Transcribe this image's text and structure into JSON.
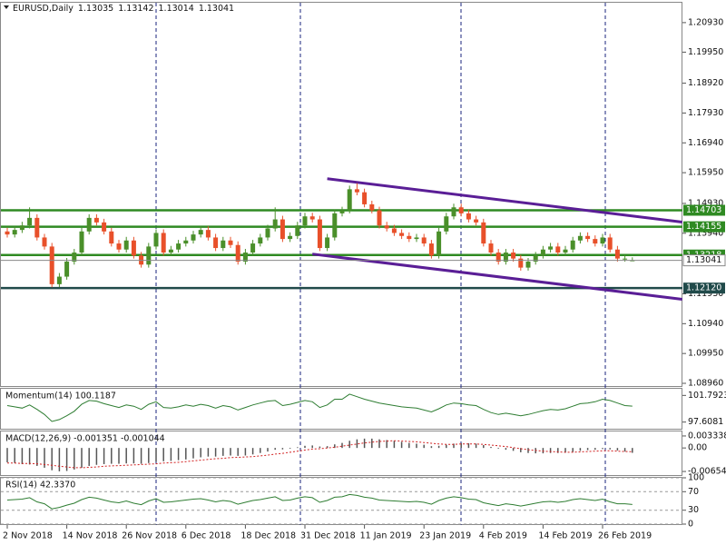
{
  "chart_data": [
    {
      "type": "candlestick",
      "symbol": "EURUSD,Daily",
      "ylim": [
        1.0887,
        1.2159
      ],
      "yticks": [
        {
          "value": 1.2093,
          "label": "1.20930"
        },
        {
          "value": 1.1995,
          "label": "1.19950"
        },
        {
          "value": 1.1892,
          "label": "1.18920"
        },
        {
          "value": 1.1793,
          "label": "1.17930"
        },
        {
          "value": 1.1694,
          "label": "1.16940"
        },
        {
          "value": 1.1595,
          "label": "1.15950"
        },
        {
          "value": 1.1493,
          "label": "1.14930"
        },
        {
          "value": 1.1394,
          "label": "1.13940"
        },
        {
          "value": 1.1193,
          "label": "1.11930"
        },
        {
          "value": 1.1094,
          "label": "1.10940"
        },
        {
          "value": 1.0995,
          "label": "1.09950"
        },
        {
          "value": 1.0896,
          "label": "1.08960"
        }
      ],
      "categories": [
        "2 Nov 2018",
        null,
        null,
        null,
        null,
        null,
        null,
        null,
        "14 Nov 2018",
        null,
        null,
        null,
        null,
        null,
        null,
        null,
        "26 Nov 2018",
        null,
        null,
        null,
        null,
        null,
        null,
        null,
        "6 Dec 2018",
        null,
        null,
        null,
        null,
        null,
        null,
        null,
        "18 Dec 2018",
        null,
        null,
        null,
        null,
        null,
        null,
        null,
        "31 Dec 2018",
        null,
        null,
        null,
        null,
        null,
        null,
        null,
        "11 Jan 2019",
        null,
        null,
        null,
        null,
        null,
        null,
        null,
        "23 Jan 2019",
        null,
        null,
        null,
        null,
        null,
        null,
        null,
        "4 Feb 2019",
        null,
        null,
        null,
        null,
        null,
        null,
        null,
        "14 Feb 2019",
        null,
        null,
        null,
        null,
        null,
        null,
        null,
        "26 Feb 2019",
        null,
        null,
        null,
        null
      ],
      "ohlc": [
        [
          1.14,
          1.1412,
          1.138,
          1.139
        ],
        [
          1.139,
          1.1417,
          1.138,
          1.1405
        ],
        [
          1.1405,
          1.1432,
          1.1395,
          1.142
        ],
        [
          1.142,
          1.148,
          1.141,
          1.1445
        ],
        [
          1.1445,
          1.1457,
          1.137,
          1.138
        ],
        [
          1.138,
          1.1392,
          1.134,
          1.135
        ],
        [
          1.135,
          1.1362,
          1.1215,
          1.1225
        ],
        [
          1.1225,
          1.1262,
          1.1215,
          1.125
        ],
        [
          1.125,
          1.1312,
          1.124,
          1.13
        ],
        [
          1.13,
          1.1342,
          1.129,
          1.133
        ],
        [
          1.133,
          1.1412,
          1.132,
          1.14
        ],
        [
          1.14,
          1.1457,
          1.139,
          1.1445
        ],
        [
          1.1445,
          1.1457,
          1.142,
          1.143
        ],
        [
          1.143,
          1.1442,
          1.139,
          1.14
        ],
        [
          1.14,
          1.1412,
          1.135,
          1.136
        ],
        [
          1.136,
          1.1372,
          1.133,
          1.134
        ],
        [
          1.134,
          1.1382,
          1.133,
          1.137
        ],
        [
          1.137,
          1.1382,
          1.131,
          1.132
        ],
        [
          1.132,
          1.1332,
          1.128,
          1.129
        ],
        [
          1.129,
          1.1362,
          1.128,
          1.135
        ],
        [
          1.135,
          1.1407,
          1.134,
          1.1395
        ],
        [
          1.1395,
          1.1407,
          1.132,
          1.133
        ],
        [
          1.133,
          1.1352,
          1.132,
          1.134
        ],
        [
          1.134,
          1.1372,
          1.133,
          1.136
        ],
        [
          1.136,
          1.1382,
          1.135,
          1.137
        ],
        [
          1.137,
          1.1402,
          1.136,
          1.139
        ],
        [
          1.139,
          1.1417,
          1.138,
          1.1405
        ],
        [
          1.1405,
          1.1417,
          1.137,
          1.138
        ],
        [
          1.138,
          1.1392,
          1.1335,
          1.1345
        ],
        [
          1.1345,
          1.1382,
          1.1335,
          1.137
        ],
        [
          1.137,
          1.1382,
          1.1345,
          1.1355
        ],
        [
          1.1355,
          1.1367,
          1.129,
          1.13
        ],
        [
          1.13,
          1.1342,
          1.129,
          1.133
        ],
        [
          1.133,
          1.1372,
          1.132,
          1.136
        ],
        [
          1.136,
          1.1392,
          1.135,
          1.138
        ],
        [
          1.138,
          1.1422,
          1.137,
          1.141
        ],
        [
          1.141,
          1.148,
          1.14,
          1.144
        ],
        [
          1.144,
          1.1452,
          1.1365,
          1.1375
        ],
        [
          1.1375,
          1.1397,
          1.1365,
          1.1385
        ],
        [
          1.1385,
          1.1432,
          1.1375,
          1.142
        ],
        [
          1.142,
          1.1462,
          1.141,
          1.145
        ],
        [
          1.145,
          1.1462,
          1.143,
          1.144
        ],
        [
          1.144,
          1.1452,
          1.1335,
          1.1345
        ],
        [
          1.1345,
          1.1392,
          1.1335,
          1.138
        ],
        [
          1.138,
          1.1472,
          1.137,
          1.146
        ],
        [
          1.146,
          1.1482,
          1.145,
          1.147
        ],
        [
          1.147,
          1.1552,
          1.146,
          1.154
        ],
        [
          1.154,
          1.156,
          1.152,
          1.153
        ],
        [
          1.153,
          1.1542,
          1.148,
          1.149
        ],
        [
          1.149,
          1.1502,
          1.146,
          1.147
        ],
        [
          1.147,
          1.1482,
          1.141,
          1.142
        ],
        [
          1.142,
          1.1432,
          1.14,
          1.141
        ],
        [
          1.141,
          1.1422,
          1.1385,
          1.1395
        ],
        [
          1.1395,
          1.1407,
          1.1375,
          1.1385
        ],
        [
          1.1385,
          1.1397,
          1.1365,
          1.1375
        ],
        [
          1.1375,
          1.1392,
          1.1365,
          1.138
        ],
        [
          1.138,
          1.1392,
          1.135,
          1.136
        ],
        [
          1.136,
          1.1372,
          1.131,
          1.132
        ],
        [
          1.132,
          1.1412,
          1.131,
          1.14
        ],
        [
          1.14,
          1.1462,
          1.139,
          1.145
        ],
        [
          1.145,
          1.1492,
          1.144,
          1.148
        ],
        [
          1.148,
          1.1492,
          1.145,
          1.146
        ],
        [
          1.146,
          1.1472,
          1.143,
          1.144
        ],
        [
          1.144,
          1.1452,
          1.142,
          1.143
        ],
        [
          1.143,
          1.1442,
          1.135,
          1.136
        ],
        [
          1.136,
          1.1372,
          1.132,
          1.133
        ],
        [
          1.133,
          1.1342,
          1.129,
          1.13
        ],
        [
          1.13,
          1.1342,
          1.129,
          1.133
        ],
        [
          1.133,
          1.1342,
          1.13,
          1.131
        ],
        [
          1.131,
          1.1322,
          1.127,
          1.128
        ],
        [
          1.128,
          1.1312,
          1.127,
          1.13
        ],
        [
          1.13,
          1.1332,
          1.129,
          1.132
        ],
        [
          1.132,
          1.1352,
          1.131,
          1.134
        ],
        [
          1.134,
          1.1362,
          1.133,
          1.135
        ],
        [
          1.135,
          1.1362,
          1.132,
          1.133
        ],
        [
          1.133,
          1.1352,
          1.132,
          1.134
        ],
        [
          1.134,
          1.1382,
          1.133,
          1.137
        ],
        [
          1.137,
          1.1397,
          1.136,
          1.1385
        ],
        [
          1.1385,
          1.1397,
          1.1365,
          1.1375
        ],
        [
          1.1375,
          1.1387,
          1.135,
          1.136
        ],
        [
          1.136,
          1.1392,
          1.135,
          1.138
        ],
        [
          1.138,
          1.1392,
          1.133,
          1.134
        ],
        [
          1.134,
          1.1352,
          1.13,
          1.131
        ],
        [
          1.131,
          1.1322,
          1.13,
          1.131
        ],
        [
          1.13035,
          1.13142,
          1.13014,
          1.13041
        ]
      ],
      "up_color": "#4a8f2a",
      "down_color": "#e8502a",
      "levels": [
        1.14703,
        1.14155,
        1.13218,
        {
          "value": 1.1212,
          "label": "1.12120"
        }
      ],
      "level_colors": [
        "#2f8a22",
        "#2f8a22",
        "#2f8a22",
        "#204a4a"
      ],
      "trendlines": [
        {
          "x": [
            43,
            90.7
          ],
          "y": [
            1.1575,
            1.1431
          ]
        },
        {
          "x": [
            41,
            90.7
          ],
          "y": [
            1.1325,
            1.1175
          ]
        }
      ],
      "trendline_color": "#5a1e96"
    },
    {
      "type": "line",
      "title": "Momentum(14) 100.1187",
      "ylim": [
        96.562,
        102.838
      ],
      "yticks": [
        101.7923,
        97.6081
      ],
      "color": "#2e7d32",
      "values": [
        100.2,
        100.0,
        99.8,
        100.3,
        99.6,
        98.8,
        97.7,
        98.0,
        98.6,
        99.3,
        100.4,
        101.0,
        100.9,
        100.5,
        100.2,
        99.9,
        100.3,
        100.1,
        99.6,
        100.4,
        100.8,
        99.9,
        99.8,
        100.0,
        100.3,
        100.1,
        100.4,
        100.2,
        99.8,
        100.2,
        100.0,
        99.5,
        99.9,
        100.3,
        100.6,
        100.9,
        101.0,
        100.2,
        100.4,
        100.7,
        101.0,
        100.8,
        99.9,
        100.3,
        101.2,
        101.2,
        102.0,
        101.6,
        101.2,
        100.9,
        100.6,
        100.4,
        100.2,
        100.0,
        99.9,
        99.8,
        99.5,
        99.2,
        99.7,
        100.3,
        100.6,
        100.5,
        100.3,
        100.2,
        99.6,
        99.1,
        98.8,
        99.0,
        98.8,
        98.6,
        98.8,
        99.1,
        99.4,
        99.6,
        99.5,
        99.7,
        100.1,
        100.5,
        100.6,
        100.8,
        101.2,
        101.0,
        100.6,
        100.2,
        100.1187
      ]
    },
    {
      "type": "macd",
      "title": "MACD(12,26,9) -0.001351 -0.001044",
      "ylim": [
        -0.00754,
        0.00459
      ],
      "yticks": [
        0.003338,
        {
          "value": 0,
          "label": "0.00"
        },
        -0.006542
      ],
      "color": "#555555",
      "signal_color": "#d22222",
      "histogram": [
        -0.004,
        -0.0042,
        -0.0045,
        -0.0046,
        -0.005,
        -0.0055,
        -0.0062,
        -0.0065,
        -0.0064,
        -0.006,
        -0.0055,
        -0.005,
        -0.0047,
        -0.0045,
        -0.0044,
        -0.0044,
        -0.0043,
        -0.0043,
        -0.0044,
        -0.0042,
        -0.0038,
        -0.0037,
        -0.0036,
        -0.0034,
        -0.0032,
        -0.0029,
        -0.0026,
        -0.0024,
        -0.0024,
        -0.0022,
        -0.0021,
        -0.0022,
        -0.0021,
        -0.0018,
        -0.0014,
        -0.001,
        -0.0005,
        -0.0004,
        -0.0002,
        0.0002,
        0.0006,
        0.0007,
        0.0004,
        0.0005,
        0.001,
        0.0014,
        0.002,
        0.0024,
        0.0026,
        0.0026,
        0.0024,
        0.0022,
        0.002,
        0.0017,
        0.0014,
        0.0012,
        0.0009,
        0.0005,
        0.0006,
        0.0009,
        0.0012,
        0.0013,
        0.0013,
        0.0012,
        0.0008,
        0.0003,
        -0.0002,
        -0.0005,
        -0.0008,
        -0.0012,
        -0.0014,
        -0.0015,
        -0.0015,
        -0.0014,
        -0.0014,
        -0.0013,
        -0.0011,
        -0.0008,
        -0.0006,
        -0.0005,
        -0.0003,
        -0.0004,
        -0.0007,
        -0.001,
        -0.001351
      ],
      "signal": [
        -0.0042,
        -0.0042,
        -0.0043,
        -0.0043,
        -0.0044,
        -0.0046,
        -0.0048,
        -0.0051,
        -0.0053,
        -0.0055,
        -0.0055,
        -0.0054,
        -0.0053,
        -0.0051,
        -0.005,
        -0.0049,
        -0.0048,
        -0.0047,
        -0.0046,
        -0.0045,
        -0.0044,
        -0.0042,
        -0.0041,
        -0.004,
        -0.0038,
        -0.0036,
        -0.0034,
        -0.0032,
        -0.003,
        -0.0029,
        -0.0027,
        -0.0026,
        -0.0025,
        -0.0024,
        -0.0022,
        -0.002,
        -0.0017,
        -0.0015,
        -0.0012,
        -0.0009,
        -0.0006,
        -0.0003,
        -0.0002,
        0.0,
        0.0002,
        0.0005,
        0.0008,
        0.0011,
        0.0014,
        0.0016,
        0.0018,
        0.0019,
        0.002,
        0.0019,
        0.0018,
        0.0017,
        0.0015,
        0.0013,
        0.0011,
        0.001,
        0.001,
        0.0011,
        0.0011,
        0.0011,
        0.001,
        0.0008,
        0.0006,
        0.0004,
        0.0001,
        -0.0002,
        -0.0005,
        -0.0007,
        -0.0009,
        -0.001,
        -0.0011,
        -0.0012,
        -0.0012,
        -0.0011,
        -0.001,
        -0.0009,
        -0.0008,
        -0.0008,
        -0.0009,
        -0.001,
        -0.001044
      ]
    },
    {
      "type": "line",
      "title": "RSI(14) 42.3370",
      "ylim": [
        0,
        100
      ],
      "yticks": [
        100,
        70,
        30,
        0
      ],
      "color": "#2e7d32",
      "grid": "dashed",
      "values": [
        52,
        53,
        54,
        57,
        48,
        44,
        33,
        36,
        41,
        45,
        53,
        58,
        56,
        52,
        48,
        46,
        50,
        45,
        42,
        50,
        55,
        47,
        48,
        50,
        52,
        54,
        55,
        52,
        48,
        51,
        49,
        43,
        47,
        51,
        53,
        56,
        59,
        51,
        52,
        56,
        59,
        57,
        47,
        51,
        58,
        59,
        64,
        62,
        58,
        56,
        52,
        51,
        50,
        49,
        48,
        49,
        47,
        43,
        51,
        56,
        59,
        57,
        54,
        53,
        46,
        43,
        40,
        44,
        42,
        39,
        42,
        45,
        48,
        49,
        47,
        49,
        53,
        55,
        53,
        51,
        54,
        48,
        44,
        44,
        42.337
      ]
    }
  ]
}
